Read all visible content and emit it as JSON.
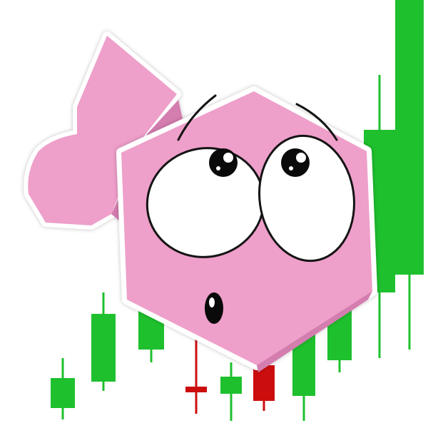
{
  "scene": {
    "subject": "pink-hexagon-fish-mascot",
    "expression": "surprised"
  },
  "colors": {
    "background": "#ffffff",
    "bull": "#1ec02e",
    "bear": "#cc0d0d",
    "fish_body": "#ee9fca",
    "fish_dark": "#d47daf",
    "eye_white": "#ffffff",
    "pupil": "#0a0a0a",
    "outline": "#141414"
  },
  "chart_data": {
    "type": "candlestick",
    "candles": [
      {
        "index": 1,
        "direction": "up",
        "open": 28,
        "close": 70,
        "low": 12,
        "high": 98
      },
      {
        "index": 2,
        "direction": "up",
        "open": 65,
        "close": 160,
        "low": 52,
        "high": 190
      },
      {
        "index": 3,
        "direction": "up",
        "open": 110,
        "close": 210,
        "low": 92,
        "high": 235
      },
      {
        "index": 4,
        "direction": "down",
        "open": 58,
        "close": 50,
        "low": 20,
        "high": 125
      },
      {
        "index": 5,
        "direction": "up",
        "open": 48,
        "close": 72,
        "low": 10,
        "high": 92
      },
      {
        "index": 6,
        "direction": "down",
        "open": 88,
        "close": 38,
        "low": 24,
        "high": 112
      },
      {
        "index": 7,
        "direction": "up",
        "open": 45,
        "close": 138,
        "low": 10,
        "high": 178
      },
      {
        "index": 8,
        "direction": "up",
        "open": 95,
        "close": 180,
        "low": 78,
        "high": 215
      },
      {
        "index": 9,
        "direction": "up",
        "open": 190,
        "close": 418,
        "low": 98,
        "high": 495
      },
      {
        "index": 10,
        "direction": "up",
        "open": 215,
        "close": 600,
        "low": 110,
        "high": 600
      }
    ]
  }
}
